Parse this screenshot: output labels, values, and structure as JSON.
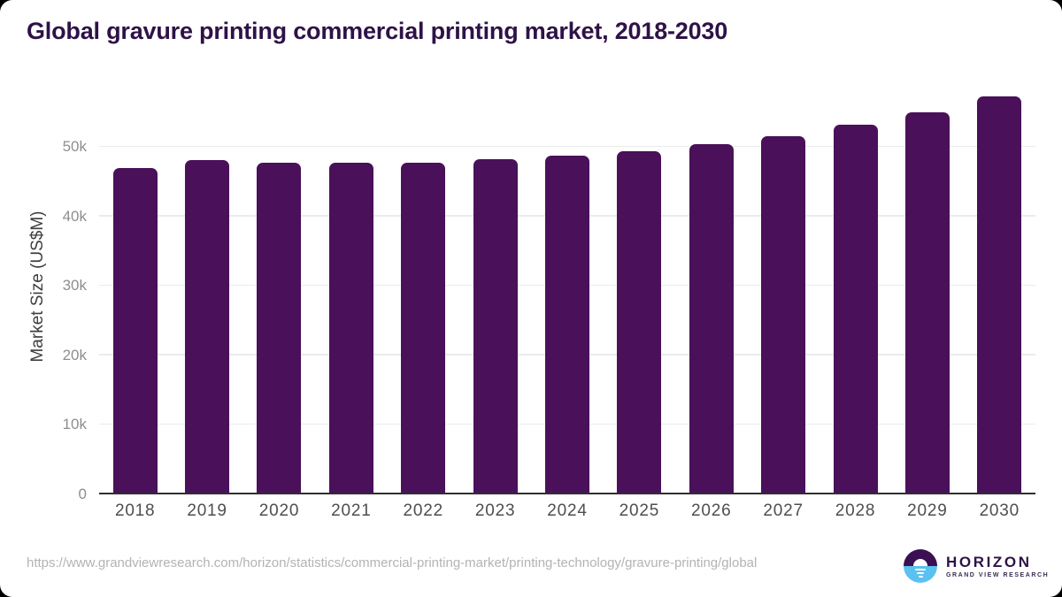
{
  "page": {
    "title": "Global gravure printing commercial printing market, 2018-2030",
    "source_url": "https://www.grandviewresearch.com/horizon/statistics/commercial-printing-market/printing-technology/gravure-printing/global",
    "logo": {
      "brand": "HORIZON",
      "subbrand": "GRAND VIEW RESEARCH"
    }
  },
  "colors": {
    "bar": "#4a1059",
    "title": "#2e1247",
    "gridline": "#ebebeb",
    "axis_line": "#2f2f2f",
    "ytick_label": "#8e8e8e",
    "xtick_label": "#4e4e4e",
    "url_text": "#b3b3b3",
    "logo_purple": "#3b1053",
    "logo_blue": "#59c2f0"
  },
  "chart_data": {
    "type": "bar",
    "title": "Global gravure printing commercial printing market, 2018-2030",
    "categories": [
      "2018",
      "2019",
      "2020",
      "2021",
      "2022",
      "2023",
      "2024",
      "2025",
      "2026",
      "2027",
      "2028",
      "2029",
      "2030"
    ],
    "values": [
      46700,
      47800,
      47500,
      47400,
      47500,
      48000,
      48500,
      49100,
      50100,
      51300,
      52900,
      54700,
      57000
    ],
    "unit": "US$M",
    "xlabel": "",
    "ylabel": "Market Size (US$M)",
    "ylim": [
      0,
      58400
    ],
    "yticks": [
      0,
      10000,
      20000,
      30000,
      40000,
      50000
    ],
    "ytick_labels": [
      "0",
      "10k",
      "20k",
      "30k",
      "40k",
      "50k"
    ],
    "grid": "horizontal-only",
    "legend": "none",
    "bar_color": "#4a1059"
  }
}
